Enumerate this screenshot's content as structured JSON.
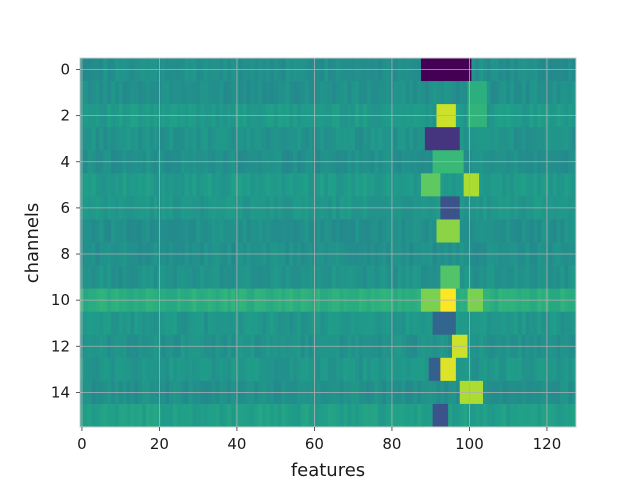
{
  "chart_data": {
    "type": "heatmap",
    "title": "",
    "xlabel": "features",
    "ylabel": "channels",
    "xlim": [
      -0.5,
      127.5
    ],
    "ylim": [
      15.5,
      -0.5
    ],
    "x_ticks": [
      0,
      20,
      40,
      60,
      80,
      100,
      120
    ],
    "y_ticks": [
      0,
      2,
      4,
      6,
      8,
      10,
      12,
      14
    ],
    "grid": true,
    "colormap": "viridis",
    "value_range": [
      -1,
      1
    ],
    "n_channels": 16,
    "n_features": 128,
    "base_levels": [
      0.0,
      0.0,
      0.08,
      0.02,
      0.0,
      0.08,
      0.05,
      0.0,
      0.0,
      0.02,
      0.25,
      0.05,
      0.02,
      0.05,
      0.0,
      0.12
    ],
    "hotspots": [
      {
        "channel": 0,
        "features": [
          88,
          100
        ],
        "value": -1.0
      },
      {
        "channel": 1,
        "features": [
          100,
          104
        ],
        "value": 0.25
      },
      {
        "channel": 2,
        "features": [
          92,
          96
        ],
        "value": 0.85
      },
      {
        "channel": 2,
        "features": [
          100,
          104
        ],
        "value": 0.3
      },
      {
        "channel": 3,
        "features": [
          89,
          97
        ],
        "value": -0.7
      },
      {
        "channel": 4,
        "features": [
          91,
          98
        ],
        "value": 0.35
      },
      {
        "channel": 5,
        "features": [
          88,
          92
        ],
        "value": 0.5
      },
      {
        "channel": 5,
        "features": [
          99,
          102
        ],
        "value": 0.75
      },
      {
        "channel": 6,
        "features": [
          93,
          97
        ],
        "value": -0.5
      },
      {
        "channel": 7,
        "features": [
          92,
          97
        ],
        "value": 0.65
      },
      {
        "channel": 9,
        "features": [
          93,
          97
        ],
        "value": 0.45
      },
      {
        "channel": 10,
        "features": [
          88,
          92
        ],
        "value": 0.6
      },
      {
        "channel": 10,
        "features": [
          93,
          96
        ],
        "value": 1.0
      },
      {
        "channel": 10,
        "features": [
          100,
          103
        ],
        "value": 0.6
      },
      {
        "channel": 11,
        "features": [
          91,
          96
        ],
        "value": -0.35
      },
      {
        "channel": 12,
        "features": [
          96,
          99
        ],
        "value": 0.85
      },
      {
        "channel": 13,
        "features": [
          92,
          96
        ],
        "value": 0.9
      },
      {
        "channel": 13,
        "features": [
          90,
          92
        ],
        "value": -0.4
      },
      {
        "channel": 14,
        "features": [
          98,
          103
        ],
        "value": 0.75
      },
      {
        "channel": 15,
        "features": [
          91,
          94
        ],
        "value": -0.5
      }
    ]
  }
}
